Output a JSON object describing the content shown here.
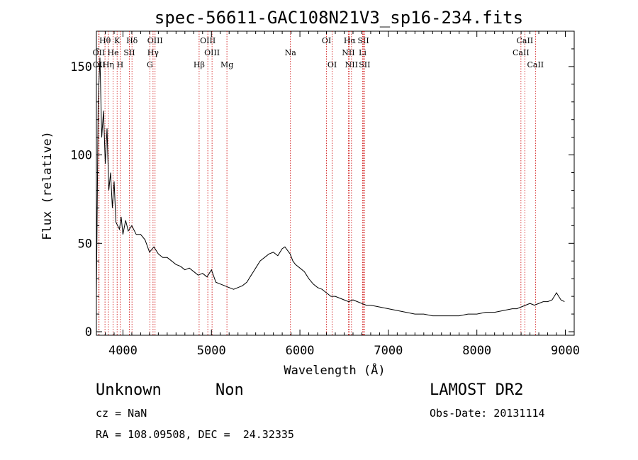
{
  "chart_data": {
    "type": "line",
    "title": "spec-56611-GAC108N21V3_sp16-234.fits",
    "xlabel": "Wavelength (Å)",
    "ylabel": "Flux (relative)",
    "xlim": [
      3700,
      9100
    ],
    "ylim": [
      -2,
      170
    ],
    "xticks": [
      4000,
      5000,
      6000,
      7000,
      8000,
      9000
    ],
    "yticks": [
      0,
      50,
      100,
      150
    ],
    "grid": false,
    "line_color": "#000000",
    "marker_color": "#cc0000",
    "spectrum": {
      "x": [
        3700,
        3720,
        3740,
        3760,
        3780,
        3800,
        3820,
        3840,
        3860,
        3880,
        3900,
        3920,
        3940,
        3960,
        3980,
        4000,
        4030,
        4060,
        4100,
        4150,
        4200,
        4250,
        4300,
        4350,
        4400,
        4450,
        4500,
        4550,
        4600,
        4650,
        4700,
        4750,
        4800,
        4850,
        4900,
        4950,
        5000,
        5050,
        5100,
        5150,
        5200,
        5250,
        5300,
        5350,
        5400,
        5450,
        5500,
        5550,
        5600,
        5650,
        5700,
        5750,
        5800,
        5830,
        5860,
        5890,
        5920,
        5950,
        6000,
        6050,
        6100,
        6150,
        6200,
        6250,
        6300,
        6350,
        6400,
        6450,
        6500,
        6550,
        6600,
        6650,
        6700,
        6750,
        6800,
        6900,
        7000,
        7100,
        7200,
        7300,
        7400,
        7500,
        7600,
        7700,
        7800,
        7900,
        8000,
        8100,
        8200,
        8300,
        8400,
        8450,
        8500,
        8550,
        8600,
        8650,
        8700,
        8750,
        8800,
        8850,
        8900,
        8950,
        8990
      ],
      "y": [
        20,
        130,
        155,
        110,
        125,
        95,
        115,
        80,
        90,
        70,
        85,
        62,
        60,
        58,
        65,
        55,
        63,
        57,
        60,
        55,
        55,
        52,
        45,
        48,
        44,
        42,
        42,
        40,
        38,
        37,
        35,
        36,
        34,
        32,
        33,
        31,
        35,
        28,
        27,
        26,
        25,
        24,
        25,
        26,
        28,
        32,
        36,
        40,
        42,
        44,
        45,
        43,
        47,
        48,
        46,
        44,
        40,
        38,
        36,
        34,
        30,
        27,
        25,
        24,
        22,
        20,
        20,
        19,
        18,
        17,
        18,
        17,
        16,
        15,
        15,
        14,
        13,
        12,
        11,
        10,
        10,
        9,
        9,
        9,
        9,
        10,
        10,
        11,
        11,
        12,
        13,
        13,
        14,
        15,
        16,
        15,
        16,
        17,
        17,
        18,
        22,
        18,
        17
      ]
    },
    "lines": [
      {
        "label": "Hθ",
        "x": 3797,
        "row": 1
      },
      {
        "label": "OII",
        "x": 3727,
        "row": 2
      },
      {
        "label": "OII",
        "x": 3730,
        "row": 3
      },
      {
        "label": "K",
        "x": 3934,
        "row": 1
      },
      {
        "label": "He",
        "x": 3889,
        "row": 2
      },
      {
        "label": "Hη",
        "x": 3835,
        "row": 3
      },
      {
        "label": "Hδ",
        "x": 4102,
        "row": 1
      },
      {
        "label": "SII",
        "x": 4072,
        "row": 2
      },
      {
        "label": "H",
        "x": 3968,
        "row": 3
      },
      {
        "label": "OIII",
        "x": 4363,
        "row": 1
      },
      {
        "label": "Hγ",
        "x": 4340,
        "row": 2
      },
      {
        "label": "G",
        "x": 4304,
        "row": 3
      },
      {
        "label": "OIII",
        "x": 4959,
        "row": 1
      },
      {
        "label": "OIII",
        "x": 5007,
        "row": 2
      },
      {
        "label": "Hβ",
        "x": 4861,
        "row": 3
      },
      {
        "label": "Mg",
        "x": 5175,
        "row": 3
      },
      {
        "label": "Na",
        "x": 5893,
        "row": 2
      },
      {
        "label": "OI",
        "x": 6300,
        "row": 1
      },
      {
        "label": "OI",
        "x": 6364,
        "row": 3
      },
      {
        "label": "Hα",
        "x": 6563,
        "row": 1
      },
      {
        "label": "NII",
        "x": 6548,
        "row": 2
      },
      {
        "label": "NII",
        "x": 6583,
        "row": 3
      },
      {
        "label": "SII",
        "x": 6717,
        "row": 1
      },
      {
        "label": "Li",
        "x": 6708,
        "row": 2
      },
      {
        "label": "SII",
        "x": 6731,
        "row": 3
      },
      {
        "label": "CaII",
        "x": 8542,
        "row": 1
      },
      {
        "label": "CaII",
        "x": 8498,
        "row": 2
      },
      {
        "label": "CaII",
        "x": 8662,
        "row": 3
      }
    ]
  },
  "info": {
    "class_label": "Unknown",
    "subclass_label": "Non",
    "cz": "cz = NaN",
    "radec": "RA = 108.09508, DEC =  24.32335",
    "survey": "LAMOST DR2",
    "obs_date": "Obs-Date: 20131114"
  }
}
